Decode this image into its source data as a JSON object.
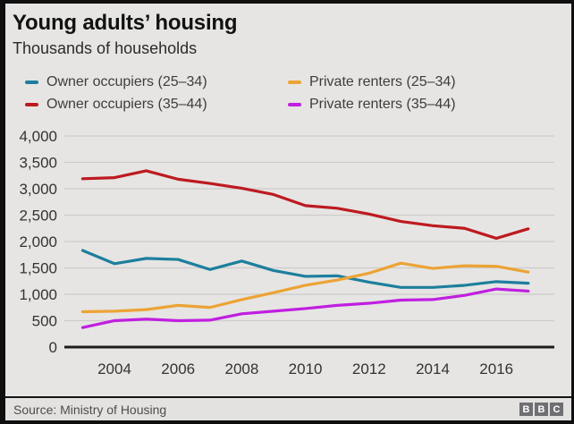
{
  "header": {
    "title": "Young adults’ housing",
    "subtitle": "Thousands of households"
  },
  "legend": {
    "items": [
      {
        "label": "Owner occupiers (25–34)",
        "color": "#1d7f9d"
      },
      {
        "label": "Owner occupiers (35–44)",
        "color": "#bd1a20"
      },
      {
        "label": "Private renters (25–34)",
        "color": "#eca335"
      },
      {
        "label": "Private renters (35–44)",
        "color": "#c01fe0"
      }
    ]
  },
  "chart_data": {
    "type": "line",
    "title": "Young adults’ housing",
    "ylabel": "Thousands of households",
    "xlabel": "",
    "grid": true,
    "legend_position": "top",
    "ylim": [
      0,
      4000
    ],
    "x": [
      2003,
      2004,
      2005,
      2006,
      2007,
      2008,
      2009,
      2010,
      2011,
      2012,
      2013,
      2014,
      2015,
      2016,
      2017
    ],
    "series": [
      {
        "name": "Owner occupiers (25–34)",
        "color": "#1d7f9d",
        "values": [
          1830,
          1580,
          1680,
          1660,
          1470,
          1630,
          1450,
          1340,
          1350,
          1230,
          1130,
          1130,
          1170,
          1240,
          1210
        ]
      },
      {
        "name": "Owner occupiers (35–44)",
        "color": "#bd1a20",
        "values": [
          3190,
          3210,
          3340,
          3180,
          3100,
          3010,
          2890,
          2680,
          2630,
          2520,
          2380,
          2300,
          2250,
          2060,
          2240
        ]
      },
      {
        "name": "Private renters (25–34)",
        "color": "#eca335",
        "values": [
          670,
          680,
          710,
          790,
          750,
          900,
          1030,
          1170,
          1270,
          1400,
          1590,
          1490,
          1540,
          1530,
          1420
        ]
      },
      {
        "name": "Private renters (35–44)",
        "color": "#c01fe0",
        "values": [
          370,
          500,
          530,
          500,
          510,
          630,
          680,
          730,
          790,
          830,
          890,
          900,
          980,
          1100,
          1060
        ]
      }
    ],
    "yticks": [
      {
        "value": 0,
        "label": "0"
      },
      {
        "value": 500,
        "label": "500"
      },
      {
        "value": 1000,
        "label": "1,000"
      },
      {
        "value": 1500,
        "label": "1,500"
      },
      {
        "value": 2000,
        "label": "2,000"
      },
      {
        "value": 2500,
        "label": "2,500"
      },
      {
        "value": 3000,
        "label": "3,000"
      },
      {
        "value": 3500,
        "label": "3,500"
      },
      {
        "value": 4000,
        "label": "4,000"
      }
    ],
    "xticks": [
      {
        "value": 2004,
        "label": "2004"
      },
      {
        "value": 2006,
        "label": "2006"
      },
      {
        "value": 2008,
        "label": "2008"
      },
      {
        "value": 2010,
        "label": "2010"
      },
      {
        "value": 2012,
        "label": "2012"
      },
      {
        "value": 2014,
        "label": "2014"
      },
      {
        "value": 2016,
        "label": "2016"
      }
    ]
  },
  "footer": {
    "source": "Source: Ministry of Housing",
    "logo_blocks": [
      "B",
      "B",
      "C"
    ]
  }
}
